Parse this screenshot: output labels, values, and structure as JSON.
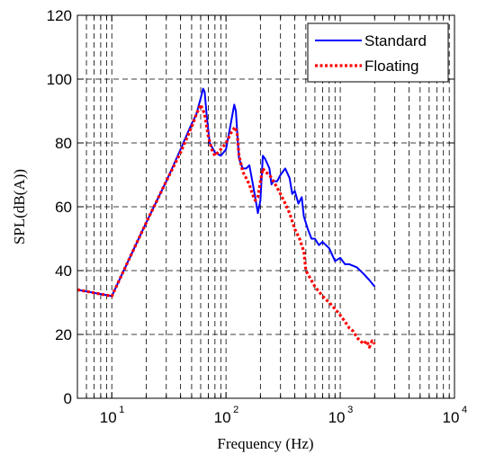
{
  "chart_data": {
    "type": "line",
    "xlabel": "Frequency (Hz)",
    "ylabel": "SPL(dB(A))",
    "xscale": "log",
    "xlim": [
      5,
      10000
    ],
    "ylim": [
      0,
      120
    ],
    "grid": true,
    "legend_position": "top-right",
    "x_ticks": [
      {
        "value": 10,
        "base": "10",
        "exp": "1"
      },
      {
        "value": 100,
        "base": "10",
        "exp": "2"
      },
      {
        "value": 1000,
        "base": "10",
        "exp": "3"
      },
      {
        "value": 10000,
        "base": "10",
        "exp": "4"
      }
    ],
    "y_ticks": [
      "0",
      "20",
      "40",
      "60",
      "80",
      "100",
      "120"
    ],
    "series": [
      {
        "name": "Standard",
        "color": "#0000ff",
        "style": "solid",
        "x": [
          5,
          10,
          20,
          30,
          40,
          50,
          55,
          60,
          63,
          65,
          68,
          72,
          80,
          90,
          100,
          110,
          118,
          122,
          126,
          130,
          140,
          150,
          160,
          170,
          180,
          190,
          200,
          210,
          220,
          240,
          250,
          260,
          280,
          300,
          330,
          360,
          380,
          400,
          430,
          460,
          480,
          520,
          560,
          600,
          650,
          700,
          800,
          900,
          1000,
          1100,
          1200,
          1400,
          1600,
          1800,
          2000
        ],
        "y": [
          34,
          32,
          55,
          68,
          78,
          86,
          89,
          94,
          97,
          96,
          88,
          80,
          77,
          76,
          78,
          86,
          92,
          90,
          82,
          75,
          72,
          72,
          73,
          68,
          63,
          58,
          62,
          76,
          75,
          72,
          67,
          68,
          68,
          70,
          72,
          69,
          64,
          65,
          61,
          63,
          57,
          53,
          50,
          50,
          48,
          49,
          47,
          43,
          44,
          42,
          42,
          41,
          39,
          37,
          35
        ]
      },
      {
        "name": "Floating",
        "color": "#ff0000",
        "style": "dotted",
        "x": [
          5,
          10,
          20,
          30,
          40,
          50,
          55,
          60,
          65,
          70,
          75,
          80,
          90,
          100,
          110,
          120,
          125,
          130,
          140,
          150,
          160,
          170,
          180,
          190,
          200,
          210,
          220,
          240,
          260,
          280,
          300,
          330,
          360,
          400,
          440,
          480,
          500,
          600,
          700,
          800,
          900,
          1000,
          1100,
          1200,
          1300,
          1400,
          1500,
          1600,
          1700,
          1800,
          1900,
          2000
        ],
        "y": [
          34,
          32,
          55,
          68,
          77,
          85,
          89,
          92,
          89,
          82,
          78,
          76,
          78,
          80,
          83,
          85,
          83,
          76,
          71,
          69,
          67,
          64,
          62,
          63,
          68,
          72,
          71,
          70,
          68,
          66,
          64,
          61,
          58,
          53,
          50,
          46,
          40,
          35,
          32,
          30,
          28,
          26,
          24,
          22,
          21,
          19,
          18,
          17,
          18,
          16,
          18,
          17
        ]
      }
    ]
  }
}
